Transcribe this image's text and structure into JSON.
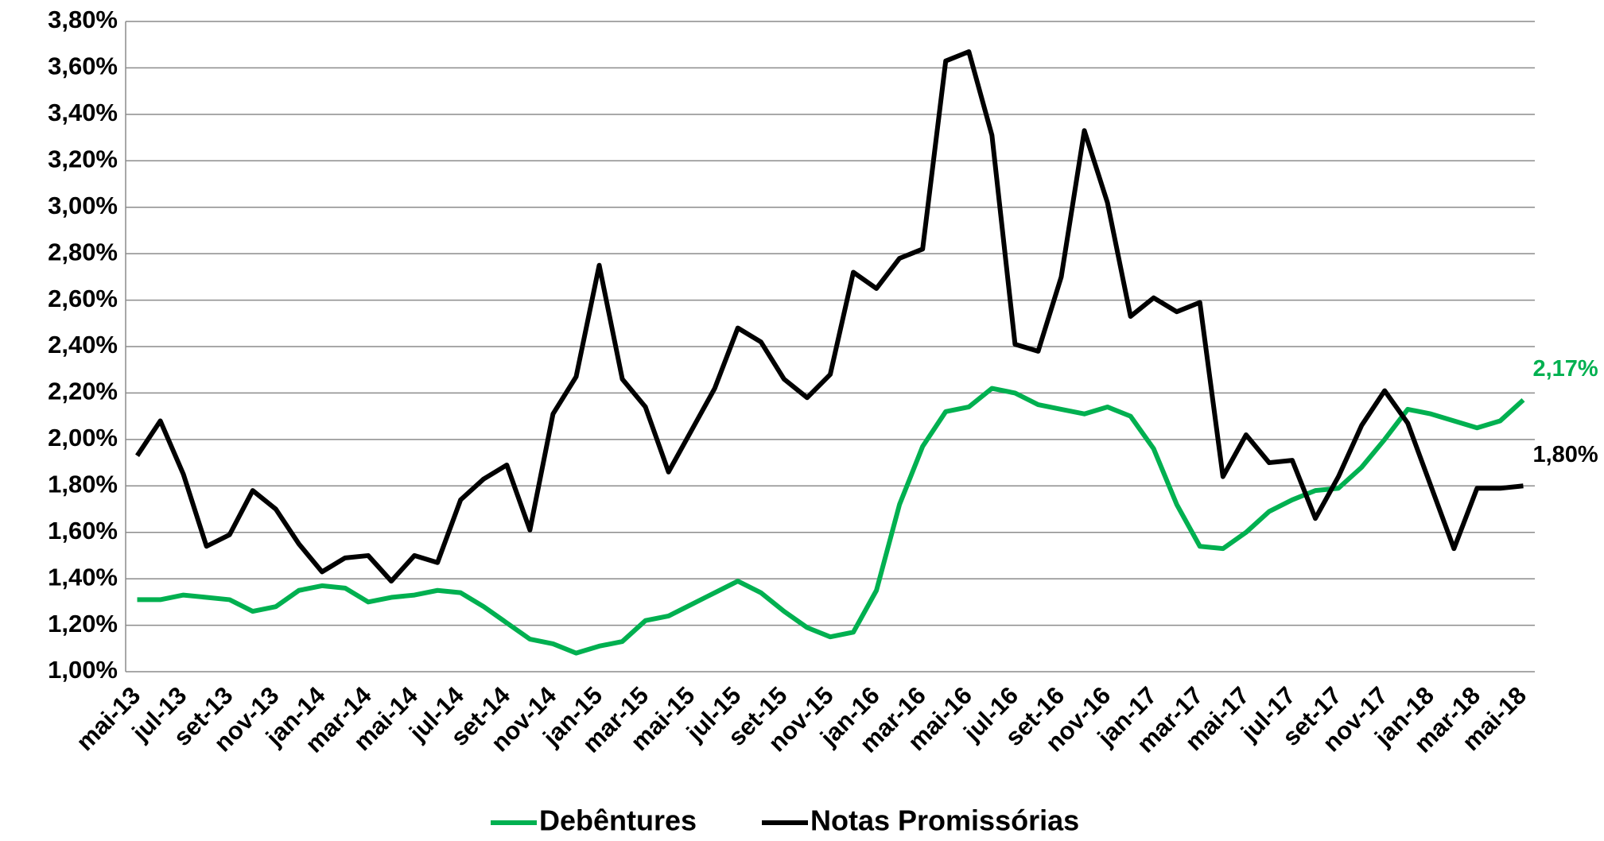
{
  "chart_data": {
    "type": "line",
    "categories": [
      "mai-13",
      null,
      "jul-13",
      null,
      "set-13",
      null,
      "nov-13",
      null,
      "jan-14",
      null,
      "mar-14",
      null,
      "mai-14",
      null,
      "jul-14",
      null,
      "set-14",
      null,
      "nov-14",
      null,
      "jan-15",
      null,
      "mar-15",
      null,
      "mai-15",
      null,
      "jul-15",
      null,
      "set-15",
      null,
      "nov-15",
      null,
      "jan-16",
      null,
      "mar-16",
      null,
      "mai-16",
      null,
      "jul-16",
      null,
      "set-16",
      null,
      "nov-16",
      null,
      "jan-17",
      null,
      "mar-17",
      null,
      "mai-17",
      null,
      "jul-17",
      null,
      "set-17",
      null,
      "nov-17",
      null,
      "jan-18",
      null,
      "mar-18",
      null,
      "mai-18"
    ],
    "series": [
      {
        "name": "Debêntures",
        "color": "#00b050",
        "values": [
          1.31,
          1.31,
          1.33,
          1.32,
          1.31,
          1.26,
          1.28,
          1.35,
          1.37,
          1.36,
          1.3,
          1.32,
          1.33,
          1.35,
          1.34,
          1.28,
          1.21,
          1.14,
          1.12,
          1.08,
          1.11,
          1.13,
          1.22,
          1.24,
          1.29,
          1.34,
          1.39,
          1.34,
          1.26,
          1.19,
          1.15,
          1.17,
          1.35,
          1.72,
          1.97,
          2.12,
          2.14,
          2.22,
          2.2,
          2.15,
          2.13,
          2.11,
          2.14,
          2.1,
          1.96,
          1.72,
          1.54,
          1.53,
          1.6,
          1.69,
          1.74,
          1.78,
          1.79,
          1.88,
          2.0,
          2.13,
          2.11,
          2.08,
          2.05,
          2.08,
          2.17
        ],
        "value_labels": [
          null,
          null,
          null,
          null,
          null,
          null,
          null,
          null,
          null,
          null,
          null,
          null,
          null,
          null,
          null,
          null,
          null,
          null,
          null,
          null,
          null,
          null,
          null,
          null,
          null,
          null,
          null,
          null,
          null,
          null,
          null,
          null,
          null,
          null,
          null,
          null,
          null,
          null,
          null,
          null,
          null,
          null,
          null,
          null,
          null,
          null,
          null,
          null,
          null,
          null,
          null,
          null,
          null,
          null,
          null,
          null,
          null,
          null,
          null,
          null,
          "2,17%"
        ]
      },
      {
        "name": "Notas Promissórias",
        "color": "#000000",
        "values": [
          1.93,
          2.08,
          1.85,
          1.54,
          1.59,
          1.78,
          1.7,
          1.55,
          1.43,
          1.49,
          1.5,
          1.39,
          1.5,
          1.47,
          1.74,
          1.83,
          1.89,
          1.61,
          2.11,
          2.27,
          2.75,
          2.26,
          2.14,
          1.86,
          2.04,
          2.22,
          2.48,
          2.42,
          2.26,
          2.18,
          2.28,
          2.72,
          2.65,
          2.78,
          2.82,
          3.63,
          3.67,
          3.31,
          2.41,
          2.38,
          2.7,
          3.33,
          3.02,
          2.53,
          2.61,
          2.55,
          2.59,
          1.84,
          2.02,
          1.9,
          1.91,
          1.66,
          1.84,
          2.06,
          2.21,
          2.07,
          1.8,
          1.53,
          1.79,
          1.79,
          1.8
        ],
        "value_labels": [
          null,
          null,
          null,
          null,
          null,
          null,
          null,
          null,
          null,
          null,
          null,
          null,
          null,
          null,
          null,
          null,
          null,
          null,
          null,
          null,
          null,
          null,
          null,
          null,
          null,
          null,
          null,
          null,
          null,
          null,
          null,
          null,
          null,
          null,
          null,
          null,
          null,
          null,
          null,
          null,
          null,
          null,
          null,
          null,
          null,
          null,
          null,
          null,
          null,
          null,
          null,
          null,
          null,
          null,
          null,
          null,
          null,
          null,
          null,
          null,
          "1,80%"
        ]
      }
    ],
    "ylim": [
      1.0,
      3.8
    ],
    "yticks": [
      {
        "value": 1.0,
        "label": "1,00%"
      },
      {
        "value": 1.2,
        "label": "1,20%"
      },
      {
        "value": 1.4,
        "label": "1,40%"
      },
      {
        "value": 1.6,
        "label": "1,60%"
      },
      {
        "value": 1.8,
        "label": "1,80%"
      },
      {
        "value": 2.0,
        "label": "2,00%"
      },
      {
        "value": 2.2,
        "label": "2,20%"
      },
      {
        "value": 2.4,
        "label": "2,40%"
      },
      {
        "value": 2.6,
        "label": "2,60%"
      },
      {
        "value": 2.8,
        "label": "2,80%"
      },
      {
        "value": 3.0,
        "label": "3,00%"
      },
      {
        "value": 3.2,
        "label": "3,20%"
      },
      {
        "value": 3.4,
        "label": "3,40%"
      },
      {
        "value": 3.6,
        "label": "3,60%"
      },
      {
        "value": 3.8,
        "label": "3,80%"
      }
    ],
    "grid": true,
    "legend": "bottom"
  }
}
